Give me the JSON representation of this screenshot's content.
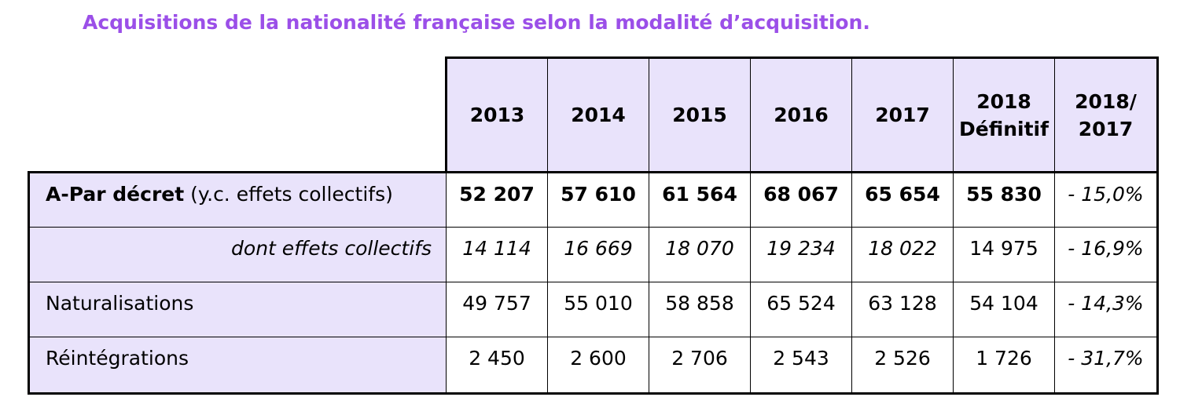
{
  "title": "Acquisitions de la nationalité française selon la modalité d’acquisition.",
  "headers": [
    "2013",
    "2014",
    "2015",
    "2016",
    "2017",
    "2018\nDéfinitif",
    "2018/\n2017"
  ],
  "header_lines": [
    [
      "2013"
    ],
    [
      "2014"
    ],
    [
      "2015"
    ],
    [
      "2016"
    ],
    [
      "2017"
    ],
    [
      "2018",
      "Définitif"
    ],
    [
      "2018/",
      "2017"
    ]
  ],
  "rows": [
    {
      "label_bold": "A-Par décret",
      "label_rest": " (y.c. effets collectifs)",
      "values": [
        "52 207",
        "57 610",
        "61 564",
        "68 067",
        "65 654",
        "55 830"
      ],
      "change": "- 15,0%"
    },
    {
      "label": "dont effets collectifs",
      "values": [
        "14 114",
        "16 669",
        "18 070",
        "19 234",
        "18 022",
        "14 975"
      ],
      "change": "- 16,9%"
    },
    {
      "label": "Naturalisations",
      "values": [
        "49 757",
        "55 010",
        "58 858",
        "65 524",
        "63 128",
        "54 104"
      ],
      "change": "- 14,3%"
    },
    {
      "label": "Réintégrations",
      "values": [
        "2 450",
        "2 600",
        "2 706",
        "2 543",
        "2 526",
        "1 726"
      ],
      "change": "- 31,7%"
    }
  ]
}
